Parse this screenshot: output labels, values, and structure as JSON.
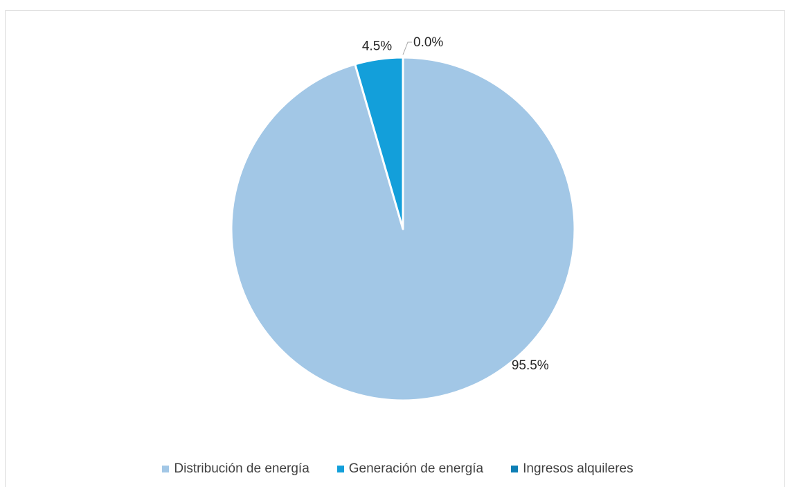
{
  "chart_data": {
    "type": "pie",
    "categories": [
      "Distribución de energía",
      "Generación de energía",
      "Ingresos alquileres"
    ],
    "values": [
      95.5,
      4.5,
      0.0
    ],
    "data_labels": [
      "95.5%",
      "4.5%",
      "0.0%"
    ],
    "colors": [
      "#a2c7e6",
      "#139fda",
      "#0e7fb5"
    ],
    "legend_position": "bottom",
    "start_angle_deg": 0,
    "direction": "clockwise"
  }
}
